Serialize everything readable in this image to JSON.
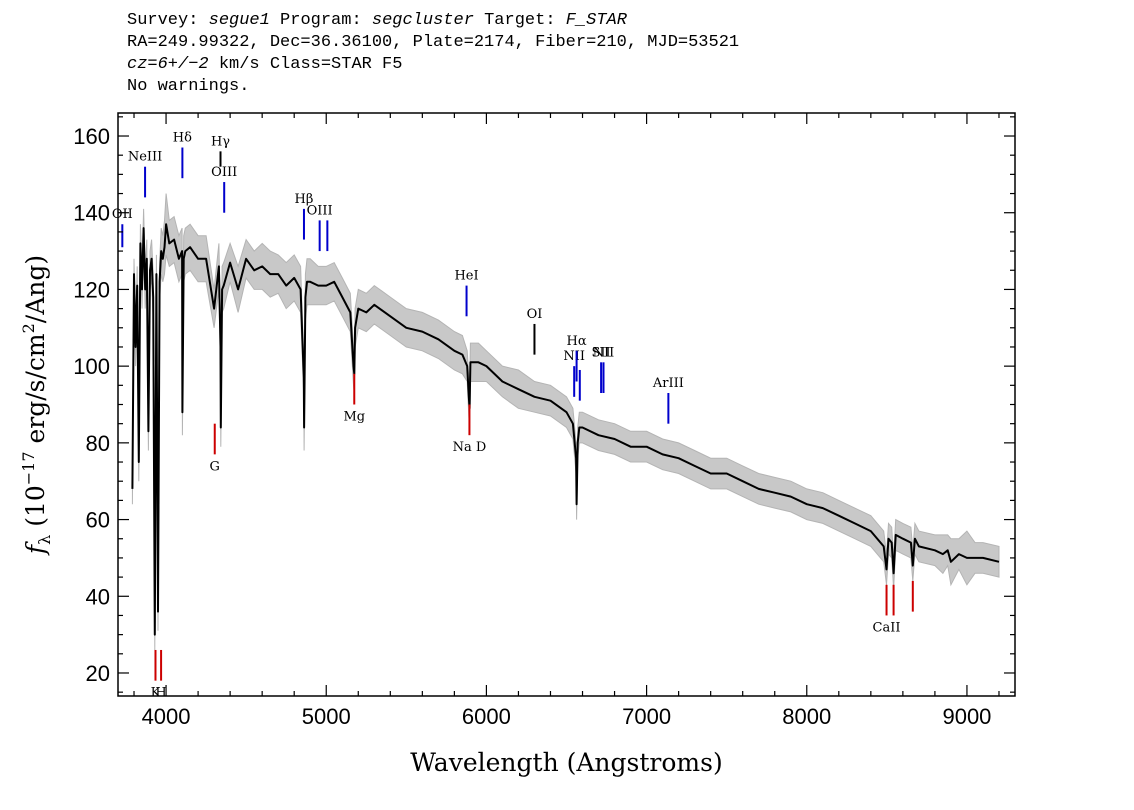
{
  "header": {
    "survey_label": "Survey:",
    "survey": "segue1",
    "program_label": "Program:",
    "program": "segcluster",
    "target_label": "Target:",
    "target": "F_STAR",
    "line2": "RA=249.99322, Dec=36.36100, Plate=2174, Fiber=210, MJD=53521",
    "cz_label": "cz=6+/−2",
    "cz_rest": " km/s Class=STAR F5",
    "line4": "No warnings."
  },
  "chart_data": {
    "type": "line",
    "xlabel": "Wavelength (Angstroms)",
    "ylabel_prefix": "f",
    "ylabel_sub": "λ",
    "ylabel_main": " (10",
    "ylabel_exp": "−17",
    "ylabel_units": " erg/s/cm",
    "ylabel_exp2": "2",
    "ylabel_end": "/Ang)",
    "xlim": [
      3700,
      9300
    ],
    "ylim": [
      14,
      166
    ],
    "x_ticks": [
      4000,
      5000,
      6000,
      7000,
      8000,
      9000
    ],
    "x_tick_labels": [
      "4000",
      "5000",
      "6000",
      "7000",
      "8000",
      "9000"
    ],
    "y_ticks": [
      20,
      40,
      60,
      80,
      100,
      120,
      140,
      160
    ],
    "y_tick_labels": [
      "20",
      "40",
      "60",
      "80",
      "100",
      "120",
      "140",
      "160"
    ],
    "series": [
      {
        "color": "#000000",
        "x": [
          3790,
          3800,
          3810,
          3820,
          3830,
          3840,
          3850,
          3860,
          3870,
          3880,
          3890,
          3900,
          3910,
          3920,
          3930,
          3940,
          3950,
          3960,
          3970,
          3980,
          3990,
          4000,
          4020,
          4050,
          4080,
          4100,
          4102,
          4110,
          4120,
          4150,
          4200,
          4250,
          4300,
          4330,
          4340,
          4342,
          4350,
          4360,
          4400,
          4450,
          4500,
          4550,
          4600,
          4650,
          4700,
          4750,
          4800,
          4840,
          4860,
          4862,
          4870,
          4880,
          4900,
          4950,
          5000,
          5050,
          5100,
          5150,
          5170,
          5175,
          5180,
          5200,
          5250,
          5300,
          5400,
          5500,
          5600,
          5700,
          5800,
          5850,
          5880,
          5890,
          5895,
          5900,
          5950,
          6000,
          6100,
          6200,
          6300,
          6400,
          6500,
          6540,
          6560,
          6563,
          6570,
          6580,
          6600,
          6700,
          6800,
          6900,
          7000,
          7100,
          7200,
          7300,
          7400,
          7500,
          7600,
          7700,
          7800,
          7900,
          8000,
          8100,
          8200,
          8300,
          8400,
          8480,
          8498,
          8510,
          8530,
          8542,
          8555,
          8600,
          8650,
          8662,
          8675,
          8700,
          8800,
          8850,
          8880,
          8900,
          8950,
          9000,
          9050,
          9100,
          9200
        ],
        "y": [
          68,
          124,
          105,
          121,
          75,
          132,
          120,
          136,
          120,
          128,
          83,
          125,
          128,
          118,
          30,
          124,
          36,
          122,
          130,
          128,
          131,
          137,
          132,
          133,
          128,
          130,
          88,
          128,
          130,
          131,
          128,
          128,
          115,
          126,
          105,
          84,
          120,
          121,
          127,
          120,
          128,
          125,
          126,
          124,
          124,
          121,
          123,
          120,
          97,
          84,
          118,
          122,
          122,
          121,
          121,
          122,
          118,
          114,
          100,
          98,
          110,
          115,
          114,
          116,
          113,
          110,
          109,
          107,
          104,
          103,
          100,
          92,
          89,
          101,
          101,
          100,
          96,
          94,
          92,
          91,
          88,
          85,
          76,
          64,
          80,
          84,
          84,
          82,
          81,
          79,
          79,
          77,
          76,
          74,
          72,
          72,
          70,
          68,
          67,
          66,
          64,
          63,
          61,
          59,
          57,
          53,
          47,
          55,
          54,
          46,
          56,
          55,
          54,
          48,
          55,
          53,
          52,
          51,
          52,
          49,
          51,
          50,
          50,
          50,
          49
        ],
        "upper": [
          72,
          128,
          110,
          126,
          80,
          137,
          125,
          141,
          125,
          133,
          88,
          130,
          133,
          124,
          35,
          129,
          41,
          127,
          136,
          134,
          138,
          145,
          138,
          139,
          134,
          136,
          94,
          134,
          136,
          137,
          134,
          134,
          120,
          132,
          111,
          89,
          126,
          127,
          132,
          126,
          133,
          130,
          132,
          130,
          129,
          127,
          129,
          126,
          102,
          90,
          124,
          128,
          128,
          126,
          126,
          127,
          123,
          119,
          105,
          103,
          115,
          120,
          119,
          121,
          118,
          115,
          114,
          112,
          109,
          108,
          104,
          97,
          94,
          106,
          106,
          104,
          100,
          99,
          96,
          95,
          92,
          89,
          80,
          68,
          84,
          88,
          88,
          86,
          85,
          83,
          83,
          81,
          80,
          78,
          76,
          76,
          74,
          72,
          71,
          70,
          68,
          67,
          65,
          63,
          61,
          57,
          51,
          59,
          58,
          50,
          60,
          59,
          58,
          52,
          59,
          57,
          56,
          56,
          56,
          55,
          55,
          57,
          54,
          54,
          53
        ],
        "lower": [
          64,
          120,
          100,
          116,
          70,
          127,
          115,
          131,
          115,
          123,
          78,
          120,
          123,
          112,
          26,
          119,
          31,
          117,
          124,
          122,
          124,
          129,
          126,
          127,
          122,
          124,
          82,
          122,
          124,
          125,
          122,
          122,
          110,
          120,
          99,
          79,
          114,
          115,
          122,
          114,
          123,
          120,
          120,
          118,
          119,
          115,
          117,
          114,
          92,
          78,
          112,
          116,
          116,
          116,
          116,
          117,
          113,
          109,
          95,
          93,
          105,
          110,
          109,
          111,
          108,
          105,
          104,
          102,
          99,
          98,
          96,
          87,
          84,
          96,
          96,
          96,
          92,
          89,
          88,
          87,
          84,
          81,
          72,
          60,
          76,
          80,
          80,
          78,
          77,
          75,
          75,
          73,
          72,
          70,
          68,
          68,
          66,
          64,
          63,
          62,
          60,
          59,
          57,
          55,
          53,
          49,
          43,
          51,
          50,
          42,
          52,
          51,
          50,
          44,
          51,
          49,
          48,
          46,
          48,
          43,
          47,
          43,
          46,
          46,
          45
        ]
      }
    ],
    "emission_lines": [
      {
        "label": "OII",
        "x": 3727,
        "y_bottom": 131,
        "y_top": 137,
        "color": "#0000cc"
      },
      {
        "label": "NeIII",
        "x": 3869,
        "y_bottom": 144,
        "y_top": 152,
        "color": "#0000cc"
      },
      {
        "label": "Hδ",
        "x": 4102,
        "y_bottom": 149,
        "y_top": 157,
        "color": "#0000cc"
      },
      {
        "label": "Hγ",
        "x": 4340,
        "y_bottom": 152,
        "y_top": 156,
        "color": "#000000"
      },
      {
        "label": "OIII",
        "x": 4363,
        "y_bottom": 140,
        "y_top": 148,
        "color": "#0000cc"
      },
      {
        "label": "Hβ",
        "x": 4861,
        "y_bottom": 133,
        "y_top": 141,
        "color": "#0000cc"
      },
      {
        "label": "OIII",
        "x": 4959,
        "y_bottom": 130,
        "y_top": 138,
        "color": "#0000cc"
      },
      {
        "label": "",
        "x": 5007,
        "y_bottom": 130,
        "y_top": 138,
        "color": "#0000cc"
      },
      {
        "label": "HeI",
        "x": 5876,
        "y_bottom": 113,
        "y_top": 121,
        "color": "#0000cc"
      },
      {
        "label": "OI",
        "x": 6300,
        "y_bottom": 103,
        "y_top": 111,
        "color": "#000000"
      },
      {
        "label": "NII",
        "x": 6548,
        "y_bottom": 92,
        "y_top": 100,
        "color": "#0000cc"
      },
      {
        "label": "Hα",
        "x": 6563,
        "y_bottom": 96,
        "y_top": 104,
        "color": "#0000cc"
      },
      {
        "label": "",
        "x": 6583,
        "y_bottom": 91,
        "y_top": 99,
        "color": "#0000cc"
      },
      {
        "label": "SII",
        "x": 6716,
        "y_bottom": 93,
        "y_top": 101,
        "color": "#0000cc"
      },
      {
        "label": "NII",
        "x": 6731,
        "y_bottom": 93,
        "y_top": 101,
        "color": "#0000cc"
      },
      {
        "label": "ArIII",
        "x": 7136,
        "y_bottom": 85,
        "y_top": 93,
        "color": "#0000cc"
      }
    ],
    "absorption_lines": [
      {
        "label": "K",
        "x": 3934,
        "y_bottom": 18,
        "y_top": 26,
        "color": "#cc0000"
      },
      {
        "label": "H",
        "x": 3969,
        "y_bottom": 18,
        "y_top": 26,
        "color": "#cc0000"
      },
      {
        "label": "G",
        "x": 4304,
        "y_bottom": 77,
        "y_top": 85,
        "color": "#cc0000"
      },
      {
        "label": "Mg",
        "x": 5175,
        "y_bottom": 90,
        "y_top": 98,
        "color": "#cc0000"
      },
      {
        "label": "Na D",
        "x": 5894,
        "y_bottom": 82,
        "y_top": 90,
        "color": "#cc0000"
      },
      {
        "label": "CaII",
        "x": 8498,
        "y_bottom": 35,
        "y_top": 43,
        "color": "#cc0000"
      },
      {
        "label": "",
        "x": 8542,
        "y_bottom": 35,
        "y_top": 43,
        "color": "#cc0000"
      },
      {
        "label": "",
        "x": 8662,
        "y_bottom": 36,
        "y_top": 44,
        "color": "#cc0000"
      }
    ]
  }
}
